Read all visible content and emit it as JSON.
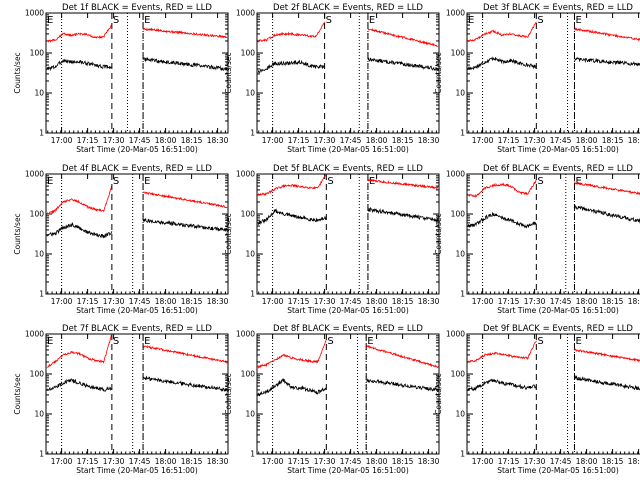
{
  "chart_data": {
    "type": "line",
    "layout": "3x3 grid",
    "x_tick_labels": [
      "17:00",
      "17:15",
      "17:30",
      "17:45",
      "18:00",
      "18:15",
      "18:30"
    ],
    "x_range_minutes_after_1651": [
      0,
      105
    ],
    "xlabel": "Start Time (20-Mar-05 16:51:00)",
    "ylabel": "Counts/sec",
    "y_scale": "log",
    "y_range": [
      1,
      1000
    ],
    "y_tick_labels": [
      "1",
      "10",
      "100",
      "1000"
    ],
    "series_colors": {
      "events": "#000000",
      "lld": "#ff0000"
    },
    "panels": [
      {
        "title": "Det 1f BLACK = Events, RED = LLD",
        "gaps": [
          [
            38,
            47
          ],
          [
            53,
            56
          ]
        ],
        "markers": [
          {
            "label": "E",
            "t": 0
          },
          {
            "label": "S",
            "t": 38
          },
          {
            "label": "E",
            "t": 56
          }
        ],
        "red": [
          200,
          210,
          300,
          280,
          300,
          290,
          240,
          260,
          500
        ],
        "black": [
          40,
          45,
          65,
          60,
          60,
          55,
          50,
          45,
          45
        ],
        "red_tail": [
          400,
          250
        ],
        "black_tail": [
          70,
          40
        ]
      },
      {
        "title": "Det 2f BLACK = Events, RED = LLD",
        "gaps": [
          [
            39,
            59
          ],
          [
            62,
            64
          ]
        ],
        "markers": [
          {
            "label": "S",
            "t": 39
          },
          {
            "label": "E",
            "t": 64
          }
        ],
        "red": [
          200,
          210,
          280,
          300,
          300,
          280,
          270,
          260,
          600
        ],
        "black": [
          35,
          40,
          55,
          55,
          55,
          60,
          50,
          45,
          45
        ],
        "red_tail": [
          400,
          150
        ],
        "black_tail": [
          70,
          40
        ]
      },
      {
        "title": "Det 3f BLACK = Events, RED = LLD",
        "gaps": [
          [
            40,
            58
          ],
          [
            60,
            62
          ]
        ],
        "markers": [
          {
            "label": "E",
            "t": 0
          },
          {
            "label": "S",
            "t": 40
          },
          {
            "label": "E",
            "t": 62
          }
        ],
        "red": [
          200,
          220,
          300,
          350,
          280,
          300,
          270,
          250,
          600
        ],
        "black": [
          40,
          45,
          60,
          75,
          60,
          65,
          55,
          50,
          45
        ],
        "red_tail": [
          400,
          200
        ],
        "black_tail": [
          70,
          50
        ]
      },
      {
        "title": "Det 4f BLACK = Events, RED = LLD",
        "gaps": [
          [
            38,
            50
          ],
          [
            53,
            56
          ]
        ],
        "markers": [
          {
            "label": "E",
            "t": 0
          },
          {
            "label": "S",
            "t": 38
          },
          {
            "label": "E",
            "t": 56
          }
        ],
        "red": [
          100,
          120,
          200,
          230,
          200,
          150,
          130,
          120,
          500
        ],
        "black": [
          30,
          32,
          45,
          55,
          45,
          35,
          30,
          28,
          35
        ],
        "red_tail": [
          350,
          150
        ],
        "black_tail": [
          70,
          40
        ]
      },
      {
        "title": "Det 5f BLACK = Events, RED = LLD",
        "gaps": [
          [
            40,
            59
          ],
          [
            62,
            64
          ]
        ],
        "markers": [
          {
            "label": "S",
            "t": 40
          },
          {
            "label": "E",
            "t": 64
          }
        ],
        "red": [
          300,
          320,
          420,
          500,
          520,
          480,
          460,
          440,
          1000
        ],
        "black": [
          60,
          70,
          120,
          100,
          90,
          80,
          75,
          70,
          80
        ],
        "red_tail": [
          700,
          450
        ],
        "black_tail": [
          130,
          70
        ]
      },
      {
        "title": "Det 6f BLACK = Events, RED = LLD",
        "gaps": [
          [
            40,
            57
          ],
          [
            60,
            62
          ]
        ],
        "markers": [
          {
            "label": "S",
            "t": 40
          },
          {
            "label": "E",
            "t": 62
          }
        ],
        "red": [
          300,
          280,
          450,
          520,
          550,
          500,
          350,
          320,
          700
        ],
        "black": [
          50,
          55,
          80,
          100,
          80,
          70,
          55,
          50,
          60
        ],
        "red_tail": [
          600,
          300
        ],
        "black_tail": [
          150,
          60
        ]
      },
      {
        "title": "Det 7f BLACK = Events, RED = LLD",
        "gaps": [
          [
            38,
            50
          ],
          [
            53,
            56
          ]
        ],
        "markers": [
          {
            "label": "E",
            "t": 0
          },
          {
            "label": "S",
            "t": 38
          },
          {
            "label": "E",
            "t": 56
          }
        ],
        "red": [
          150,
          200,
          300,
          350,
          320,
          250,
          220,
          200,
          1000
        ],
        "black": [
          40,
          45,
          60,
          70,
          60,
          50,
          45,
          40,
          45
        ],
        "red_tail": [
          500,
          200
        ],
        "black_tail": [
          80,
          40
        ]
      },
      {
        "title": "Det 8f BLACK = Events, RED = LLD",
        "gaps": [
          [
            40,
            58
          ],
          [
            60,
            63
          ]
        ],
        "markers": [
          {
            "label": "S",
            "t": 40
          },
          {
            "label": "E",
            "t": 63
          }
        ],
        "red": [
          150,
          170,
          220,
          300,
          250,
          230,
          210,
          200,
          700
        ],
        "black": [
          30,
          35,
          50,
          70,
          45,
          45,
          40,
          35,
          45
        ],
        "red_tail": [
          500,
          150
        ],
        "black_tail": [
          70,
          40
        ]
      },
      {
        "title": "Det 9f BLACK = Events, RED = LLD",
        "gaps": [
          [
            40,
            58
          ],
          [
            60,
            62
          ]
        ],
        "markers": [
          {
            "label": "S",
            "t": 40
          },
          {
            "label": "E",
            "t": 62
          }
        ],
        "red": [
          200,
          220,
          300,
          330,
          320,
          280,
          260,
          250,
          700
        ],
        "black": [
          40,
          45,
          60,
          70,
          60,
          55,
          50,
          45,
          50
        ],
        "red_tail": [
          400,
          200
        ],
        "black_tail": [
          80,
          40
        ]
      }
    ]
  }
}
